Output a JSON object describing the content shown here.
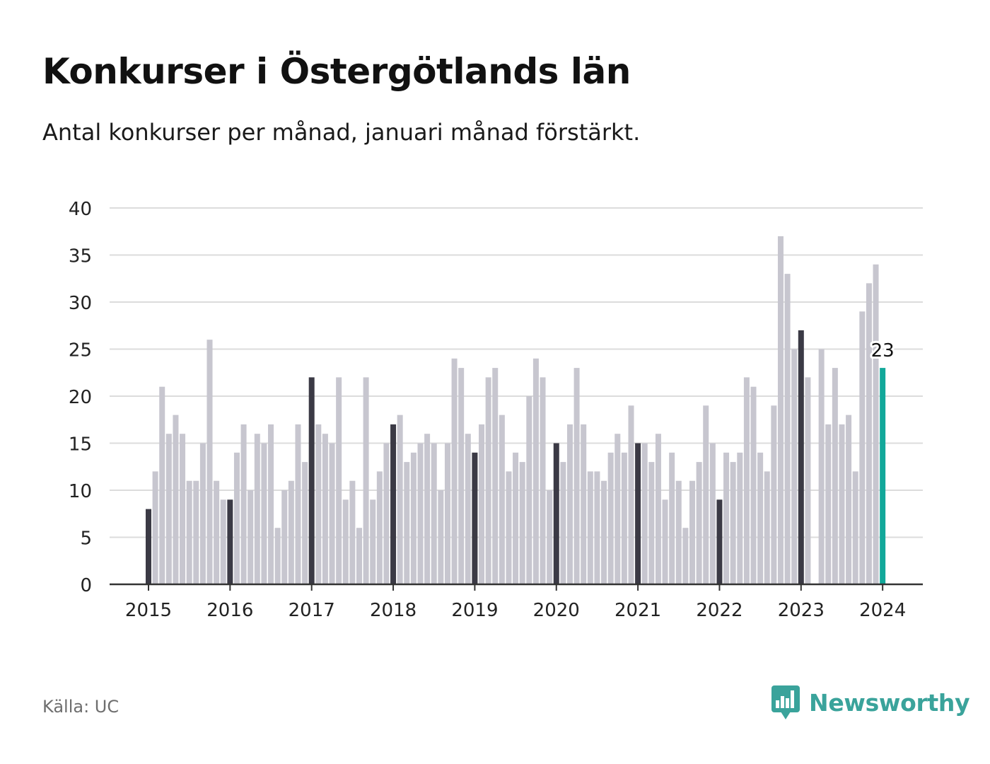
{
  "title": "Konkurser i Östergötlands län",
  "subtitle": "Antal konkurser per månad, januari månad förstärkt.",
  "source": "Källa: UC",
  "brand": "Newsworthy",
  "chart_data": {
    "type": "bar",
    "start": "2015-01",
    "values": [
      8,
      12,
      21,
      16,
      18,
      16,
      11,
      11,
      15,
      26,
      11,
      9,
      9,
      14,
      17,
      10,
      16,
      15,
      17,
      6,
      10,
      11,
      17,
      13,
      22,
      17,
      16,
      15,
      22,
      9,
      11,
      6,
      22,
      9,
      12,
      15,
      17,
      18,
      13,
      14,
      15,
      16,
      15,
      10,
      15,
      24,
      23,
      16,
      14,
      17,
      22,
      23,
      18,
      12,
      14,
      13,
      20,
      24,
      22,
      10,
      15,
      13,
      17,
      23,
      17,
      12,
      12,
      11,
      14,
      16,
      14,
      19,
      15,
      15,
      13,
      16,
      9,
      14,
      11,
      6,
      11,
      13,
      19,
      15,
      9,
      14,
      13,
      14,
      22,
      21,
      14,
      12,
      19,
      37,
      33,
      25,
      27,
      22,
      0,
      25,
      17,
      23,
      17,
      18,
      12,
      29,
      32,
      34,
      23
    ],
    "highlight": "january",
    "latest_label": "23",
    "x_ticks": [
      "2015",
      "2016",
      "2017",
      "2018",
      "2019",
      "2020",
      "2021",
      "2022",
      "2023",
      "2024"
    ],
    "y_ticks": [
      0,
      5,
      10,
      15,
      20,
      25,
      30,
      35,
      40
    ],
    "ylim": [
      0,
      40
    ],
    "grid": true,
    "colors": {
      "january": "#3b3a45",
      "other": "#c7c6cf",
      "latest": "#12a89a",
      "grid": "#dcdcdc",
      "axis": "#333333"
    }
  }
}
